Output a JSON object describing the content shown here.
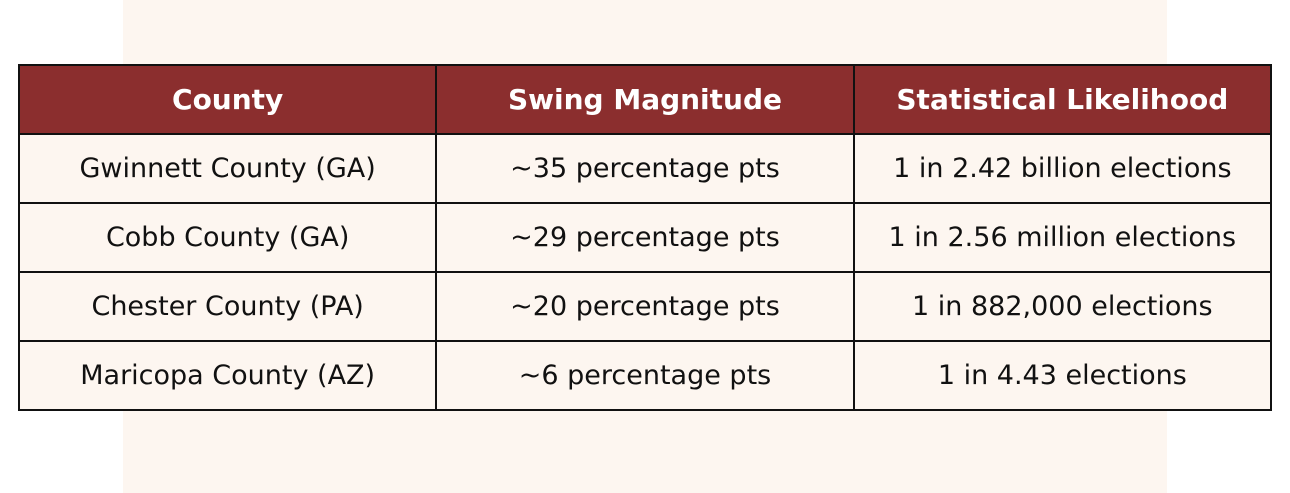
{
  "colors": {
    "header_background": "#8b2e2e",
    "header_text": "#ffffff",
    "cell_background": "#fdf6f0",
    "border": "#111111"
  },
  "chart_data": {
    "type": "table",
    "columns": [
      "County",
      "Swing Magnitude",
      "Statistical Likelihood"
    ],
    "rows": [
      [
        "Gwinnett County (GA)",
        "~35 percentage pts",
        "1 in 2.42 billion elections"
      ],
      [
        "Cobb County (GA)",
        "~29 percentage pts",
        "1 in 2.56 million elections"
      ],
      [
        "Chester County (PA)",
        "~20 percentage pts",
        "1 in 882,000 elections"
      ],
      [
        "Maricopa County (AZ)",
        "~6 percentage pts",
        "1 in 4.43 elections"
      ]
    ]
  }
}
